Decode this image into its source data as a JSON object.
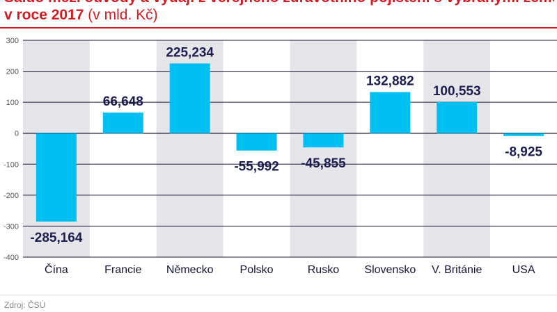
{
  "header": {
    "title_line1": "Saldo mezi odvody a výdaji z veřejného zdravotního pojištění s vybranými zeměmi",
    "title_line2_bold": "v roce 2017",
    "title_line2_unit": "(v mld. Kč)"
  },
  "footer": {
    "source": "Zdroj: ČSÚ"
  },
  "colors": {
    "accent": "#d51b22",
    "bar": "#00bff3",
    "band": "#e5e5ea",
    "grid": "#1c1c3a",
    "label": "#1c1c50"
  },
  "chart_data": {
    "type": "bar",
    "categories": [
      "Čína",
      "Francie",
      "Německo",
      "Polsko",
      "Rusko",
      "Slovensko",
      "V. Británie",
      "USA"
    ],
    "values": [
      -285.164,
      66.648,
      225.234,
      -55.992,
      -45.855,
      132.882,
      100.553,
      -8.925
    ],
    "value_labels": [
      "-285,164",
      "66,648",
      "225,234",
      "-55,992",
      "-45,855",
      "132,882",
      "100,553",
      "-8,925"
    ],
    "ylim": [
      -400,
      300
    ],
    "yticks": [
      300,
      200,
      100,
      0,
      -100,
      -200,
      -300,
      -400
    ],
    "ytick_labels": [
      "300",
      "200",
      "100",
      "0",
      "-100",
      "-200",
      "-300",
      "-400"
    ],
    "shaded_categories": [
      "Čína",
      "Německo",
      "Rusko",
      "V. Británie"
    ],
    "grid": true
  }
}
